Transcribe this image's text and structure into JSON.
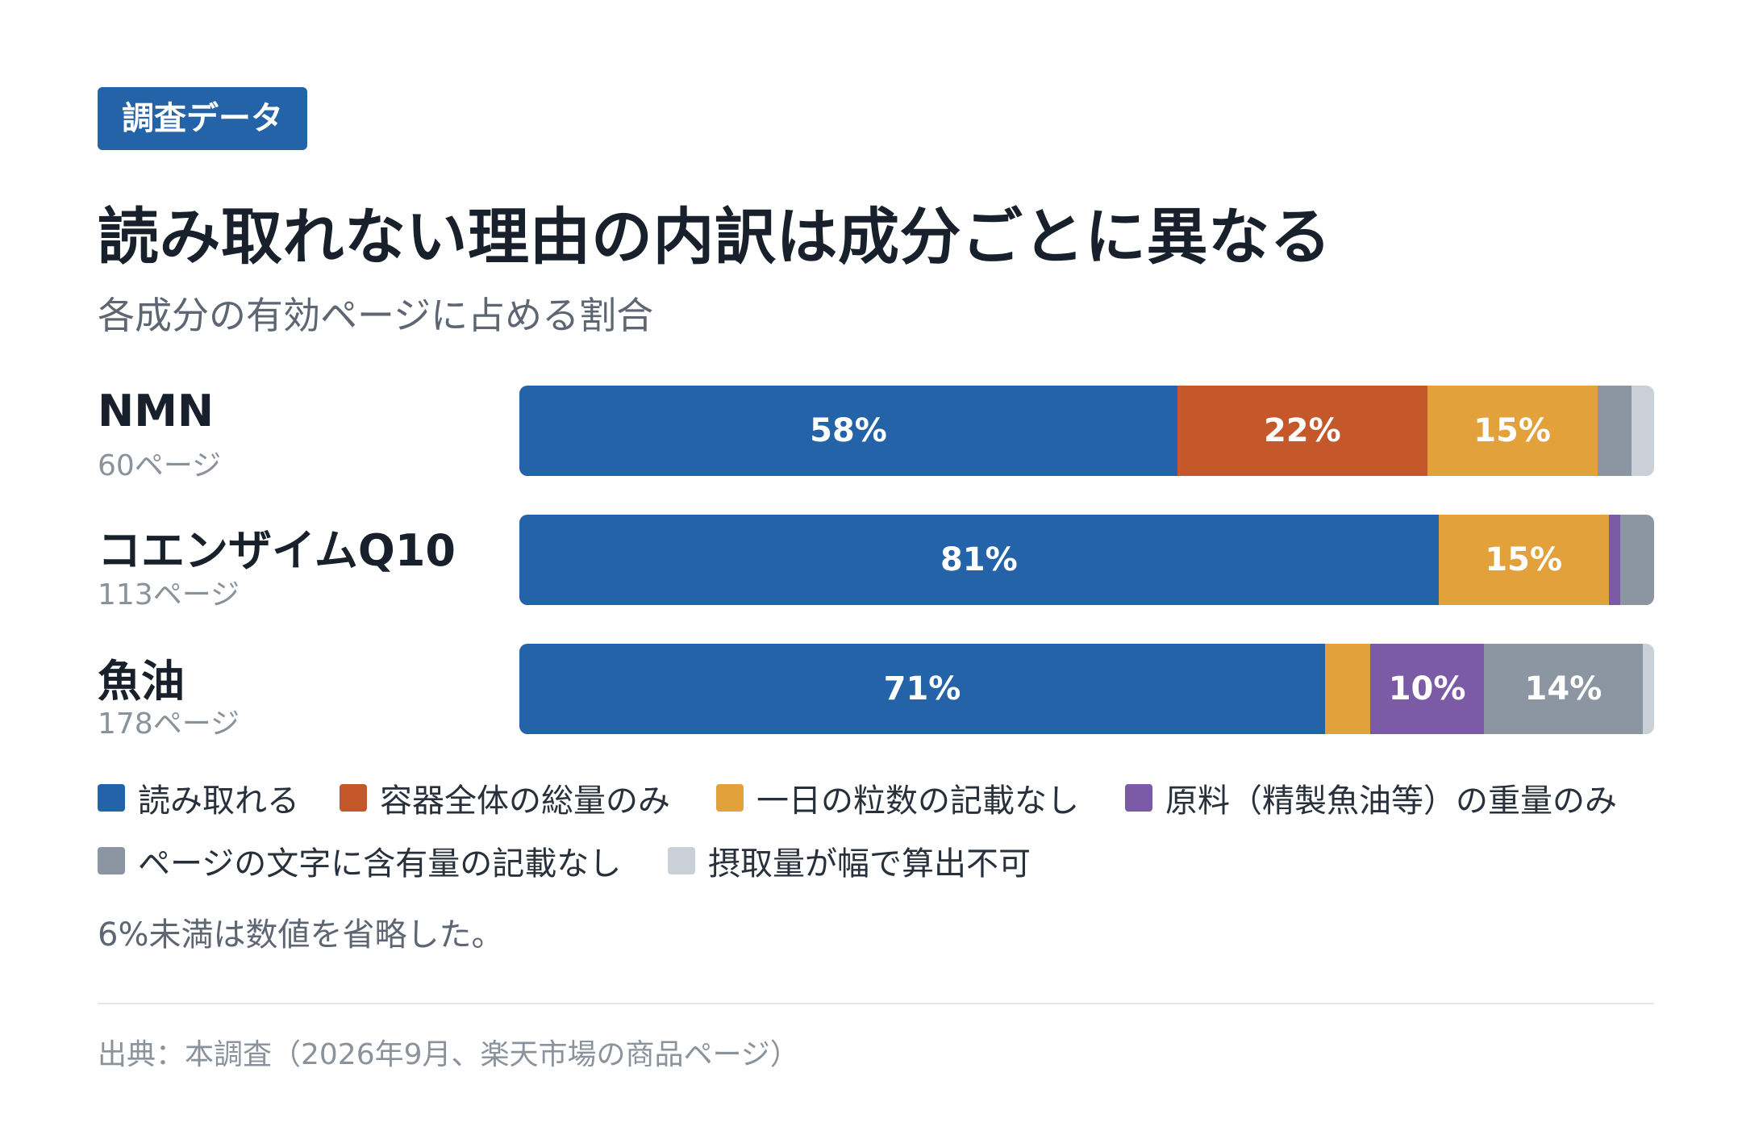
{
  "badge": "調査データ",
  "title": "読み取れない理由の内訳は成分ごとに異なる",
  "subtitle": "各成分の有効ページに占める割合",
  "chart_data": {
    "type": "bar",
    "orientation": "horizontal",
    "stacked": true,
    "categories": [
      "NMN",
      "コエンザイムQ10",
      "魚油"
    ],
    "category_subtitles": [
      "60ページ",
      "113ページ",
      "178ページ"
    ],
    "xlim": [
      0,
      100
    ],
    "grid": false,
    "legend_placement": "bottom",
    "series": [
      {
        "name": "読み取れる",
        "color": "#2563a8",
        "values": [
          58,
          81,
          71
        ],
        "labels": [
          "58%",
          "81%",
          "71%"
        ]
      },
      {
        "name": "容器全体の総量のみ",
        "color": "#c4582b",
        "values": [
          22,
          0,
          0
        ],
        "labels": [
          "22%",
          "",
          ""
        ]
      },
      {
        "name": "一日の粒数の記載なし",
        "color": "#e2a13b",
        "values": [
          15,
          15,
          4
        ],
        "labels": [
          "15%",
          "15%",
          ""
        ]
      },
      {
        "name": "原料（精製魚油等）の重量のみ",
        "color": "#7b5aa6",
        "values": [
          0,
          1,
          10
        ],
        "labels": [
          "",
          "",
          "10%"
        ]
      },
      {
        "name": "ページの文字に含有量の記載なし",
        "color": "#8c96a2",
        "values": [
          3,
          3,
          14
        ],
        "labels": [
          "",
          "",
          "14%"
        ]
      },
      {
        "name": "摂取量が幅で算出不可",
        "color": "#c9d0d8",
        "values": [
          2,
          0,
          1
        ],
        "labels": [
          "",
          "",
          ""
        ]
      }
    ]
  },
  "note": "6%未満は数値を省略した。",
  "source": "出典：本調査（2026年9月、楽天市場の商品ページ）"
}
